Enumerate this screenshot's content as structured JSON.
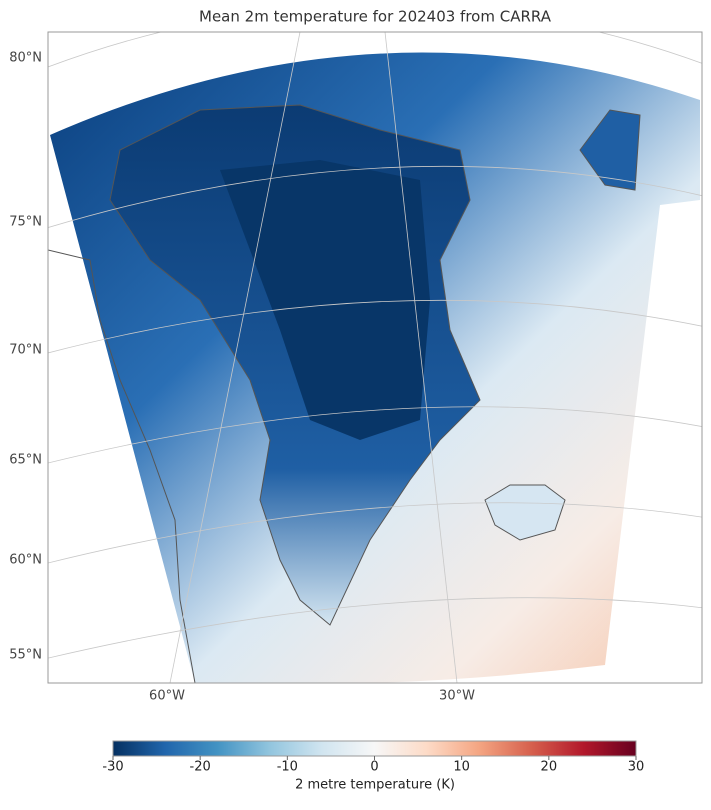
{
  "map": {
    "title": "Mean 2m temperature for 202403 from CARRA",
    "lat_ticks": [
      {
        "value": 80,
        "label": "80°N"
      },
      {
        "value": 75,
        "label": "75°N"
      },
      {
        "value": 70,
        "label": "70°N"
      },
      {
        "value": 65,
        "label": "65°N"
      },
      {
        "value": 60,
        "label": "60°N"
      },
      {
        "value": 55,
        "label": "55°N"
      }
    ],
    "lon_ticks": [
      {
        "value": -60,
        "label": "60°W"
      },
      {
        "value": -30,
        "label": "30°W"
      }
    ],
    "colorbar": {
      "label": "2 metre temperature (K)",
      "clim": [
        -30,
        30
      ],
      "ticks": [
        -30,
        -20,
        -10,
        0,
        10,
        20,
        30
      ],
      "colormap": [
        "#053061",
        "#2166ac",
        "#4393c3",
        "#92c5de",
        "#d1e5f0",
        "#f7f7f7",
        "#fddbc7",
        "#f4a582",
        "#d6604d",
        "#b2182b",
        "#67001f"
      ]
    }
  }
}
